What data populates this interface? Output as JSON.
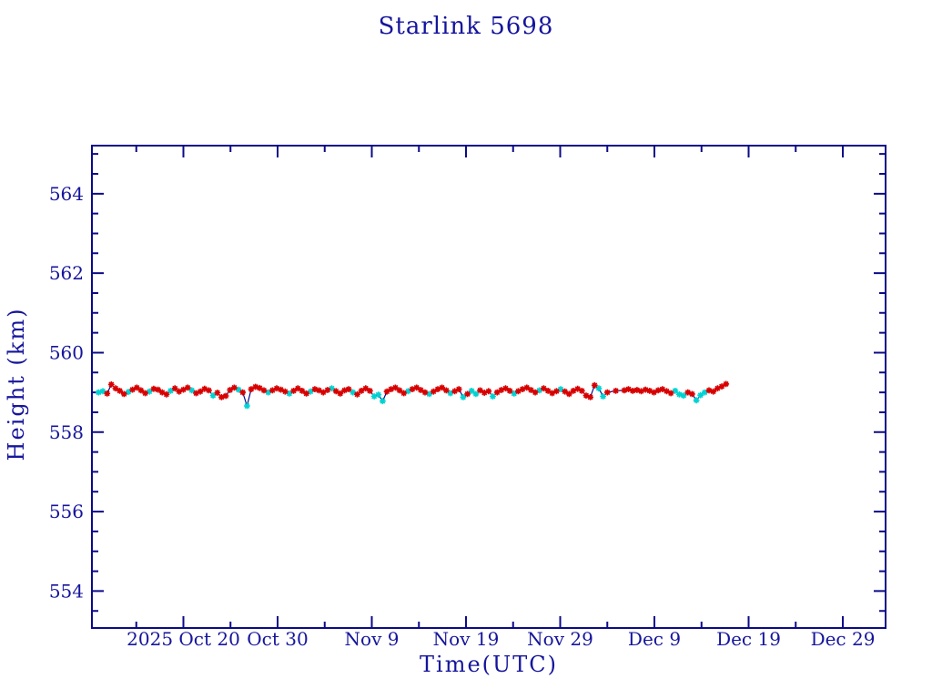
{
  "colors": {
    "background": "#ffffff",
    "navy": "#0b0b87",
    "text": "#15159c",
    "red": "#d80000",
    "cyan": "#00d2d2"
  },
  "chart_data": {
    "type": "scatter",
    "title": "Starlink 5698",
    "xlabel": "Time(UTC)",
    "ylabel": "Height (km)",
    "grid": false,
    "legend": null,
    "x_axis": {
      "unit": "days since 2025 Oct 20 (UTC)",
      "range_days": [
        -9.71,
        74.54
      ],
      "major_ticks": [
        {
          "day": 0,
          "label": "2025 Oct 20"
        },
        {
          "day": 10,
          "label": "Oct 30"
        },
        {
          "day": 20,
          "label": "Nov  9"
        },
        {
          "day": 30,
          "label": "Nov 19"
        },
        {
          "day": 40,
          "label": "Nov 29"
        },
        {
          "day": 50,
          "label": "Dec  9"
        },
        {
          "day": 60,
          "label": "Dec 19"
        },
        {
          "day": 70,
          "label": "Dec 29"
        }
      ],
      "minor_tick_days": [
        -5,
        5,
        15,
        25,
        35,
        45,
        55,
        65
      ]
    },
    "y_axis": {
      "range_km": [
        553.07,
        565.21
      ],
      "major_ticks": [
        554,
        556,
        558,
        560,
        562,
        564
      ],
      "minor_step_km": 0.5
    },
    "series": [
      {
        "name": "red-asterisks",
        "marker": "asterisk",
        "color_key": "red"
      },
      {
        "name": "cyan-asterisks",
        "marker": "asterisk",
        "color_key": "cyan"
      }
    ],
    "line": {
      "description": "navy line connecting all points in time order",
      "color_key": "navy"
    },
    "point_format": [
      "day_since_oct20",
      "height_km",
      "color_flag_0red_1cyan"
    ],
    "points": [
      [
        -9.0,
        559.0,
        1
      ],
      [
        -8.55,
        559.03,
        1
      ],
      [
        -8.1,
        558.97,
        0
      ],
      [
        -7.65,
        559.2,
        0
      ],
      [
        -7.2,
        559.1,
        0
      ],
      [
        -6.75,
        559.04,
        0
      ],
      [
        -6.3,
        558.96,
        0
      ],
      [
        -5.85,
        559.01,
        1
      ],
      [
        -5.4,
        559.07,
        0
      ],
      [
        -4.95,
        559.12,
        0
      ],
      [
        -4.5,
        559.05,
        0
      ],
      [
        -4.05,
        558.98,
        0
      ],
      [
        -3.6,
        559.02,
        1
      ],
      [
        -3.15,
        559.09,
        0
      ],
      [
        -2.7,
        559.07,
        0
      ],
      [
        -2.25,
        559.0,
        0
      ],
      [
        -1.8,
        558.95,
        0
      ],
      [
        -1.35,
        559.04,
        1
      ],
      [
        -0.9,
        559.1,
        0
      ],
      [
        -0.45,
        559.02,
        0
      ],
      [
        0.0,
        559.07,
        0
      ],
      [
        0.45,
        559.12,
        0
      ],
      [
        0.9,
        559.05,
        1
      ],
      [
        1.35,
        558.98,
        0
      ],
      [
        1.8,
        559.02,
        0
      ],
      [
        2.25,
        559.09,
        0
      ],
      [
        2.7,
        559.05,
        0
      ],
      [
        3.15,
        558.92,
        1
      ],
      [
        3.6,
        558.99,
        0
      ],
      [
        4.05,
        558.88,
        0
      ],
      [
        4.5,
        558.91,
        0
      ],
      [
        4.95,
        559.06,
        0
      ],
      [
        5.4,
        559.12,
        0
      ],
      [
        5.85,
        559.07,
        1
      ],
      [
        6.3,
        559.0,
        0
      ],
      [
        6.75,
        558.66,
        1
      ],
      [
        7.2,
        559.08,
        0
      ],
      [
        7.65,
        559.14,
        0
      ],
      [
        8.1,
        559.11,
        0
      ],
      [
        8.55,
        559.05,
        0
      ],
      [
        9.0,
        559.0,
        1
      ],
      [
        9.45,
        559.05,
        0
      ],
      [
        9.9,
        559.1,
        0
      ],
      [
        10.35,
        559.07,
        0
      ],
      [
        10.8,
        559.02,
        0
      ],
      [
        11.25,
        558.97,
        1
      ],
      [
        11.7,
        559.04,
        0
      ],
      [
        12.15,
        559.1,
        0
      ],
      [
        12.6,
        559.04,
        0
      ],
      [
        13.05,
        558.97,
        0
      ],
      [
        13.5,
        559.02,
        1
      ],
      [
        13.95,
        559.08,
        0
      ],
      [
        14.4,
        559.05,
        0
      ],
      [
        14.85,
        559.0,
        0
      ],
      [
        15.3,
        559.06,
        0
      ],
      [
        15.75,
        559.1,
        1
      ],
      [
        16.2,
        559.03,
        0
      ],
      [
        16.65,
        558.97,
        0
      ],
      [
        17.1,
        559.05,
        0
      ],
      [
        17.55,
        559.08,
        0
      ],
      [
        18.0,
        559.0,
        1
      ],
      [
        18.45,
        558.95,
        0
      ],
      [
        18.9,
        559.04,
        0
      ],
      [
        19.35,
        559.1,
        0
      ],
      [
        19.8,
        559.04,
        0
      ],
      [
        20.25,
        558.9,
        1
      ],
      [
        20.7,
        558.94,
        1
      ],
      [
        21.15,
        558.78,
        1
      ],
      [
        21.6,
        559.02,
        0
      ],
      [
        22.05,
        559.08,
        0
      ],
      [
        22.5,
        559.12,
        0
      ],
      [
        22.95,
        559.05,
        0
      ],
      [
        23.4,
        558.98,
        0
      ],
      [
        23.85,
        559.03,
        1
      ],
      [
        24.3,
        559.08,
        0
      ],
      [
        24.75,
        559.12,
        0
      ],
      [
        25.2,
        559.06,
        0
      ],
      [
        25.65,
        559.0,
        0
      ],
      [
        26.1,
        558.96,
        1
      ],
      [
        26.55,
        559.02,
        0
      ],
      [
        27.0,
        559.08,
        0
      ],
      [
        27.45,
        559.12,
        0
      ],
      [
        27.9,
        559.05,
        0
      ],
      [
        28.35,
        558.98,
        1
      ],
      [
        28.8,
        559.03,
        0
      ],
      [
        29.25,
        559.08,
        0
      ],
      [
        29.7,
        558.88,
        1
      ],
      [
        30.15,
        558.96,
        0
      ],
      [
        30.6,
        559.04,
        1
      ],
      [
        31.05,
        558.96,
        1
      ],
      [
        31.5,
        559.05,
        0
      ],
      [
        31.95,
        558.99,
        0
      ],
      [
        32.4,
        559.03,
        0
      ],
      [
        32.85,
        558.9,
        1
      ],
      [
        33.3,
        559.0,
        0
      ],
      [
        33.75,
        559.06,
        0
      ],
      [
        34.2,
        559.1,
        0
      ],
      [
        34.65,
        559.04,
        0
      ],
      [
        35.1,
        558.97,
        1
      ],
      [
        35.55,
        559.03,
        0
      ],
      [
        36.0,
        559.08,
        0
      ],
      [
        36.45,
        559.12,
        0
      ],
      [
        36.9,
        559.06,
        0
      ],
      [
        37.35,
        559.0,
        0
      ],
      [
        37.8,
        559.05,
        1
      ],
      [
        38.25,
        559.1,
        0
      ],
      [
        38.7,
        559.04,
        0
      ],
      [
        39.15,
        558.98,
        0
      ],
      [
        39.6,
        559.03,
        0
      ],
      [
        40.05,
        559.08,
        1
      ],
      [
        40.5,
        559.02,
        0
      ],
      [
        40.95,
        558.96,
        0
      ],
      [
        41.4,
        559.04,
        0
      ],
      [
        41.85,
        559.09,
        0
      ],
      [
        42.3,
        559.04,
        0
      ],
      [
        42.75,
        558.92,
        0
      ],
      [
        43.2,
        558.88,
        0
      ],
      [
        43.65,
        559.18,
        0
      ],
      [
        44.1,
        559.1,
        1
      ],
      [
        44.55,
        558.9,
        1
      ],
      [
        45.0,
        559.0,
        0
      ],
      [
        45.9,
        559.04,
        0
      ],
      [
        46.8,
        559.05,
        0
      ],
      [
        47.25,
        559.08,
        0
      ],
      [
        47.7,
        559.04,
        0
      ],
      [
        48.15,
        559.06,
        0
      ],
      [
        48.6,
        559.03,
        0
      ],
      [
        49.05,
        559.07,
        0
      ],
      [
        49.5,
        559.04,
        0
      ],
      [
        49.95,
        559.0,
        0
      ],
      [
        50.4,
        559.05,
        0
      ],
      [
        50.85,
        559.08,
        0
      ],
      [
        51.3,
        559.03,
        0
      ],
      [
        51.75,
        558.98,
        0
      ],
      [
        52.2,
        559.04,
        1
      ],
      [
        52.65,
        558.95,
        1
      ],
      [
        53.1,
        558.92,
        1
      ],
      [
        53.55,
        559.0,
        0
      ],
      [
        54.0,
        558.96,
        0
      ],
      [
        54.45,
        558.8,
        1
      ],
      [
        54.9,
        558.93,
        1
      ],
      [
        55.35,
        559.0,
        1
      ],
      [
        55.8,
        559.05,
        0
      ],
      [
        56.25,
        559.02,
        0
      ],
      [
        56.7,
        559.1,
        0
      ],
      [
        57.15,
        559.15,
        0
      ],
      [
        57.6,
        559.21,
        0
      ]
    ]
  }
}
